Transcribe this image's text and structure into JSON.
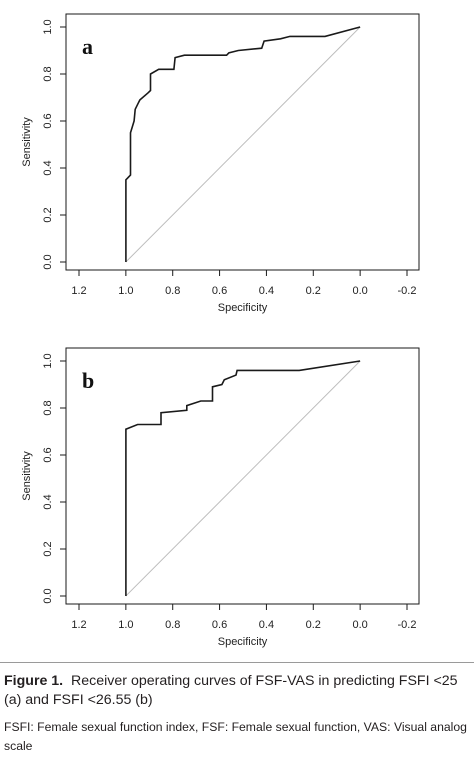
{
  "chart_data": [
    {
      "type": "line",
      "panel_label": "a",
      "xlabel": "Specificity",
      "ylabel": "Sensitivity",
      "xlim": [
        1.2,
        -0.2
      ],
      "ylim": [
        0.0,
        1.0
      ],
      "x_reversed": true,
      "xticks": [
        1.2,
        1.0,
        0.8,
        0.6,
        0.4,
        0.2,
        0.0,
        -0.2
      ],
      "xtick_labels": [
        "1.2",
        "1.0",
        "0.8",
        "0.6",
        "0.4",
        "0.2",
        "0.0",
        "-0.2"
      ],
      "yticks": [
        0.0,
        0.2,
        0.4,
        0.6,
        0.8,
        1.0
      ],
      "ytick_labels": [
        "0.0",
        "0.2",
        "0.4",
        "0.6",
        "0.8",
        "1.0"
      ],
      "grid": false,
      "reference_line": {
        "from": [
          1.0,
          0.0
        ],
        "to": [
          0.0,
          1.0
        ],
        "color": "#bdbdbd"
      },
      "series": [
        {
          "color": "#1a1a1a",
          "x": [
            1.0,
            1.0,
            0.98,
            0.98,
            0.965,
            0.96,
            0.945,
            0.94,
            0.905,
            0.895,
            0.895,
            0.86,
            0.795,
            0.79,
            0.75,
            0.57,
            0.56,
            0.52,
            0.42,
            0.41,
            0.34,
            0.3,
            0.15,
            0.0
          ],
          "y": [
            0.0,
            0.35,
            0.37,
            0.55,
            0.6,
            0.65,
            0.68,
            0.69,
            0.72,
            0.73,
            0.8,
            0.82,
            0.82,
            0.87,
            0.88,
            0.88,
            0.89,
            0.9,
            0.91,
            0.94,
            0.95,
            0.96,
            0.96,
            1.0
          ]
        }
      ]
    },
    {
      "type": "line",
      "panel_label": "b",
      "xlabel": "Specificity",
      "ylabel": "Sensitivity",
      "xlim": [
        1.2,
        -0.2
      ],
      "ylim": [
        0.0,
        1.0
      ],
      "x_reversed": true,
      "xticks": [
        1.2,
        1.0,
        0.8,
        0.6,
        0.4,
        0.2,
        0.0,
        -0.2
      ],
      "xtick_labels": [
        "1.2",
        "1.0",
        "0.8",
        "0.6",
        "0.4",
        "0.2",
        "0.0",
        "-0.2"
      ],
      "yticks": [
        0.0,
        0.2,
        0.4,
        0.6,
        0.8,
        1.0
      ],
      "ytick_labels": [
        "0.0",
        "0.2",
        "0.4",
        "0.6",
        "0.8",
        "1.0"
      ],
      "grid": false,
      "reference_line": {
        "from": [
          1.0,
          0.0
        ],
        "to": [
          0.0,
          1.0
        ],
        "color": "#bdbdbd"
      },
      "series": [
        {
          "color": "#1a1a1a",
          "x": [
            1.0,
            1.0,
            0.95,
            0.85,
            0.85,
            0.74,
            0.74,
            0.68,
            0.63,
            0.63,
            0.59,
            0.58,
            0.53,
            0.525,
            0.26,
            0.0
          ],
          "y": [
            0.0,
            0.71,
            0.73,
            0.73,
            0.78,
            0.79,
            0.81,
            0.83,
            0.83,
            0.89,
            0.9,
            0.92,
            0.94,
            0.96,
            0.96,
            1.0
          ]
        }
      ]
    }
  ],
  "caption": {
    "figure_label": "Figure 1.",
    "text": "Receiver operating curves of FSF-VAS in predicting FSFI <25 (a) and FSFI <26.55 (b)"
  },
  "footnote": "FSFI: Female sexual function index, FSF: Female sexual function, VAS: Visual analog scale"
}
